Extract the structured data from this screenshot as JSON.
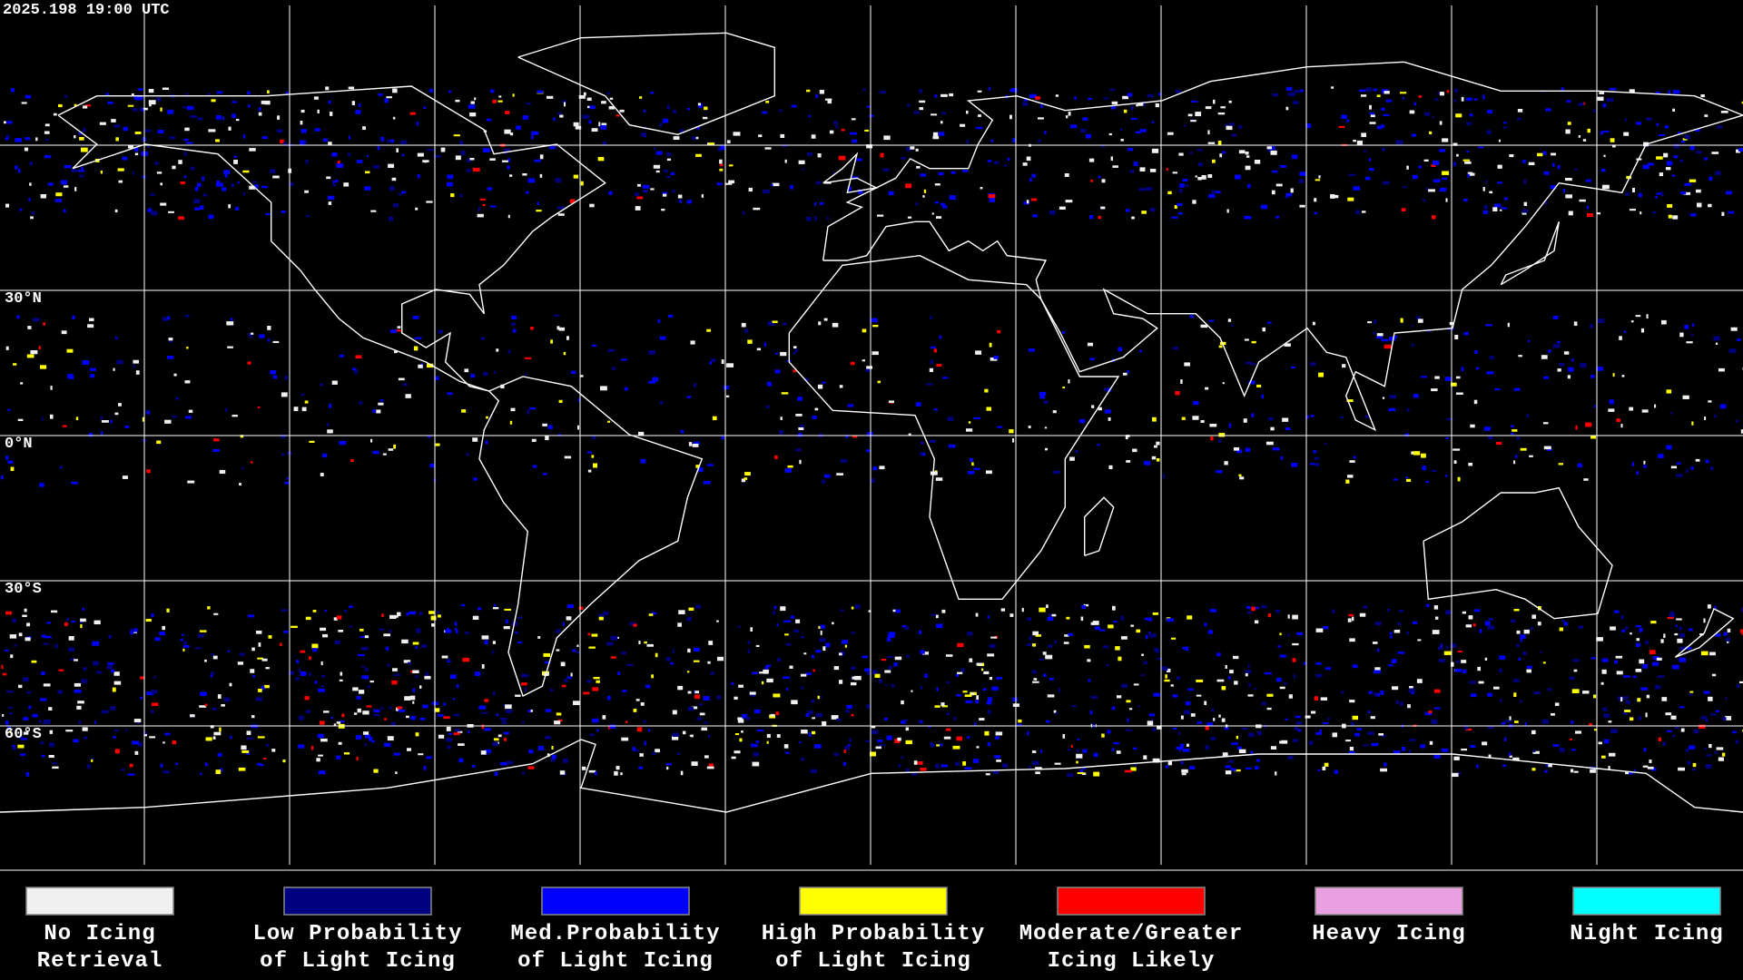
{
  "timestamp": "2025.198 19:00 UTC",
  "lat_labels": [
    "30°N",
    "0°N",
    "30°S",
    "60°S"
  ],
  "legend": [
    {
      "lines": [
        "No Icing",
        "Retrieval"
      ],
      "color": "#f0f0f0"
    },
    {
      "lines": [
        "Low Probability",
        "of Light Icing"
      ],
      "color": "#000080"
    },
    {
      "lines": [
        "Med.Probability",
        "of Light Icing"
      ],
      "color": "#0000ff"
    },
    {
      "lines": [
        "High Probability",
        "of Light Icing"
      ],
      "color": "#ffff00"
    },
    {
      "lines": [
        "Moderate/Greater",
        "Icing Likely"
      ],
      "color": "#ff0000"
    },
    {
      "lines": [
        "Heavy Icing"
      ],
      "color": "#e8a0e0"
    },
    {
      "lines": [
        "Night Icing"
      ],
      "color": "#00ffff"
    }
  ]
}
